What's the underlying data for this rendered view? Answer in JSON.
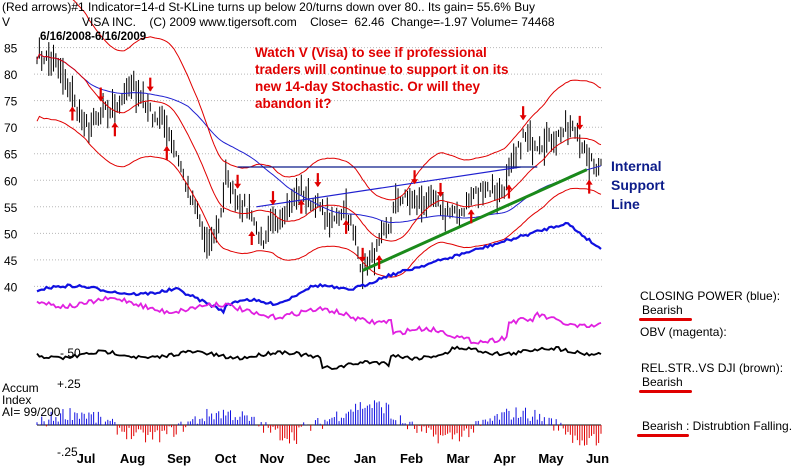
{
  "header": {
    "line1": "(Red arrows)#1 Indicator=14-d St-KLine turns up below 20/turns down over 80.. Its gain= 55.6% Buy",
    "ticker": "V",
    "line2": "VISA INC.    (C) 2009 www.tigersoft.com    Close=  62.46  Change=-1.97 Volume= 74468",
    "daterange": "6/16/2008-6/16/2009"
  },
  "annotation_red": [
    "Watch V (Visa)  to see if professional",
    "traders will continue to support it on its",
    "new 14-day Stochastic.  Or will they",
    "abandon it?"
  ],
  "annotation_blue": [
    "Internal",
    "Support",
    "Line"
  ],
  "indicators": {
    "closing_power_label": "CLOSING POWER (blue):",
    "closing_power_status": "Bearish",
    "obv_label": "OBV (magenta):",
    "relstr_label": "REL.STR..VS DJI (brown):",
    "relstr_status": "Bearish",
    "accum_status": "Bearish",
    "accum_text": ": Distrubtion Falling."
  },
  "accum": {
    "title": "Accum",
    "subtitle": "Index",
    "ai": "AI= 99/200",
    "top_level": "+.25",
    "bottom_level": "-.25",
    "rel_level": "-.50"
  },
  "colors": {
    "price": "#000000",
    "bands": "#e00000",
    "ma": "#2020d0",
    "closing_power": "#1010e0",
    "obv": "#e020e0",
    "relstr": "#000000",
    "trend": "#1a8a1a",
    "accum_pos": "#1010e0",
    "accum_neg": "#e00000",
    "arrows": "#e00000",
    "annotation_red": "#e00000",
    "annotation_blue": "#0c1c8a"
  },
  "chart_data": {
    "type": "line",
    "title": "VISA INC.",
    "ylim": [
      38,
      87
    ],
    "yticks": [
      40,
      45,
      50,
      55,
      60,
      65,
      70,
      75,
      80,
      85
    ],
    "months": [
      "Jul",
      "Aug",
      "Sep",
      "Oct",
      "Nov",
      "Dec",
      "Jan",
      "Feb",
      "Mar",
      "Apr",
      "May",
      "Jun"
    ],
    "anchors": [
      [
        0,
        84
      ],
      [
        8,
        82
      ],
      [
        15,
        76
      ],
      [
        20,
        70
      ],
      [
        27,
        72
      ],
      [
        33,
        74
      ],
      [
        40,
        78
      ],
      [
        48,
        73
      ],
      [
        55,
        70
      ],
      [
        60,
        64
      ],
      [
        65,
        56
      ],
      [
        68,
        54
      ],
      [
        72,
        47
      ],
      [
        77,
        52
      ],
      [
        80,
        60
      ],
      [
        85,
        56
      ],
      [
        91,
        54
      ],
      [
        96,
        47
      ],
      [
        100,
        52
      ],
      [
        107,
        55
      ],
      [
        112,
        58
      ],
      [
        119,
        55
      ],
      [
        125,
        52
      ],
      [
        131,
        55
      ],
      [
        138,
        43
      ],
      [
        143,
        46
      ],
      [
        148,
        50
      ],
      [
        153,
        57
      ],
      [
        160,
        56
      ],
      [
        166,
        56
      ],
      [
        171,
        55
      ],
      [
        178,
        53
      ],
      [
        184,
        57
      ],
      [
        190,
        59
      ],
      [
        196,
        57
      ],
      [
        200,
        61
      ],
      [
        203,
        64
      ],
      [
        206,
        68
      ],
      [
        212,
        67
      ],
      [
        219,
        68
      ],
      [
        225,
        70
      ],
      [
        230,
        68
      ],
      [
        233,
        64
      ],
      [
        236,
        63
      ]
    ],
    "buy_arrows": [
      15,
      33,
      55,
      91,
      112,
      131,
      145,
      184,
      200,
      234
    ],
    "sell_arrows": [
      27,
      48,
      85,
      100,
      119,
      138,
      160,
      171,
      206,
      230
    ]
  }
}
